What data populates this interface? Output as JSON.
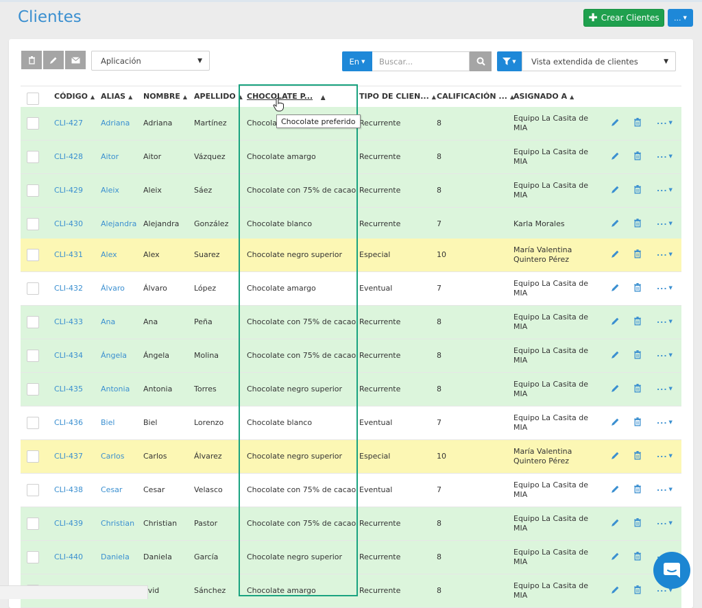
{
  "page": {
    "title": "Clientes"
  },
  "header": {
    "create_label": "Crear Clientes",
    "more_label": "..."
  },
  "toolbar": {
    "view_select": "Aplicación",
    "lang_label": "En",
    "search_placeholder": "Buscar...",
    "view_filter": "Vista extendida de clientes"
  },
  "table": {
    "columns": {
      "codigo": "CÓDIGO",
      "alias": "ALIAS",
      "nombre": "NOMBRE",
      "apellido": "APELLIDO",
      "chocolate": "CHOCOLATE P...",
      "tipo": "TIPO DE CLIEN...",
      "calificacion": "CALIFICACIÓN ...",
      "asignado": "ASIGNADO A"
    },
    "tooltip": "Chocolate preferido",
    "rows": [
      {
        "codigo": "CLI-427",
        "alias": "Adriana",
        "nombre": "Adriana",
        "apellido": "Martínez",
        "chocolate": "Chocolate",
        "tipo": "Recurrente",
        "calificacion": "8",
        "asignado": "Equipo La Casita de MIA",
        "color": "green"
      },
      {
        "codigo": "CLI-428",
        "alias": "Aitor",
        "nombre": "Aitor",
        "apellido": "Vázquez",
        "chocolate": "Chocolate amargo",
        "tipo": "Recurrente",
        "calificacion": "8",
        "asignado": "Equipo La Casita de MIA",
        "color": "green"
      },
      {
        "codigo": "CLI-429",
        "alias": "Aleix",
        "nombre": "Aleix",
        "apellido": "Sáez",
        "chocolate": "Chocolate con 75% de cacao",
        "tipo": "Recurrente",
        "calificacion": "8",
        "asignado": "Equipo La Casita de MIA",
        "color": "green"
      },
      {
        "codigo": "CLI-430",
        "alias": "Alejandra",
        "nombre": "Alejandra",
        "apellido": "González",
        "chocolate": "Chocolate blanco",
        "tipo": "Recurrente",
        "calificacion": "7",
        "asignado": "Karla Morales",
        "color": "green"
      },
      {
        "codigo": "CLI-431",
        "alias": "Alex",
        "nombre": "Alex",
        "apellido": "Suarez",
        "chocolate": "Chocolate negro superior",
        "tipo": "Especial",
        "calificacion": "10",
        "asignado": "María Valentina Quintero Pérez",
        "color": "yellow"
      },
      {
        "codigo": "CLI-432",
        "alias": "Álvaro",
        "nombre": "Álvaro",
        "apellido": "López",
        "chocolate": "Chocolate amargo",
        "tipo": "Eventual",
        "calificacion": "7",
        "asignado": "Equipo La Casita de MIA",
        "color": "white"
      },
      {
        "codigo": "CLI-433",
        "alias": "Ana",
        "nombre": "Ana",
        "apellido": "Peña",
        "chocolate": "Chocolate con 75% de cacao",
        "tipo": "Recurrente",
        "calificacion": "8",
        "asignado": "Equipo La Casita de MIA",
        "color": "green"
      },
      {
        "codigo": "CLI-434",
        "alias": "Ángela",
        "nombre": "Ángela",
        "apellido": "Molina",
        "chocolate": "Chocolate con 75% de cacao",
        "tipo": "Recurrente",
        "calificacion": "8",
        "asignado": "Equipo La Casita de MIA",
        "color": "green"
      },
      {
        "codigo": "CLI-435",
        "alias": "Antonia",
        "nombre": "Antonia",
        "apellido": "Torres",
        "chocolate": "Chocolate negro superior",
        "tipo": "Recurrente",
        "calificacion": "8",
        "asignado": "Equipo La Casita de MIA",
        "color": "green"
      },
      {
        "codigo": "CLI-436",
        "alias": "Biel",
        "nombre": "Biel",
        "apellido": "Lorenzo",
        "chocolate": "Chocolate blanco",
        "tipo": "Eventual",
        "calificacion": "7",
        "asignado": "Equipo La Casita de MIA",
        "color": "white"
      },
      {
        "codigo": "CLI-437",
        "alias": "Carlos",
        "nombre": "Carlos",
        "apellido": "Álvarez",
        "chocolate": "Chocolate negro superior",
        "tipo": "Especial",
        "calificacion": "10",
        "asignado": "María Valentina Quintero Pérez",
        "color": "yellow"
      },
      {
        "codigo": "CLI-438",
        "alias": "Cesar",
        "nombre": "Cesar",
        "apellido": "Velasco",
        "chocolate": "Chocolate con 75% de cacao",
        "tipo": "Eventual",
        "calificacion": "7",
        "asignado": "Equipo La Casita de MIA",
        "color": "white"
      },
      {
        "codigo": "CLI-439",
        "alias": "Christian",
        "nombre": "Christian",
        "apellido": "Pastor",
        "chocolate": "Chocolate con 75% de cacao",
        "tipo": "Recurrente",
        "calificacion": "8",
        "asignado": "Equipo La Casita de MIA",
        "color": "green"
      },
      {
        "codigo": "CLI-440",
        "alias": "Daniela",
        "nombre": "Daniela",
        "apellido": "García",
        "chocolate": "Chocolate negro superior",
        "tipo": "Recurrente",
        "calificacion": "8",
        "asignado": "Equipo La Casita de MIA",
        "color": "green"
      },
      {
        "codigo": "",
        "alias": "",
        "nombre": "avid",
        "apellido": "Sánchez",
        "chocolate": "Chocolate amargo",
        "tipo": "Recurrente",
        "calificacion": "8",
        "asignado": "Equipo La Casita de MIA",
        "color": "green"
      }
    ]
  },
  "colors": {
    "green": "#dcf5dc",
    "yellow": "#fcf7b4",
    "white": "#ffffff",
    "accent": "#1e88d8",
    "highlight": "#18a27f"
  }
}
